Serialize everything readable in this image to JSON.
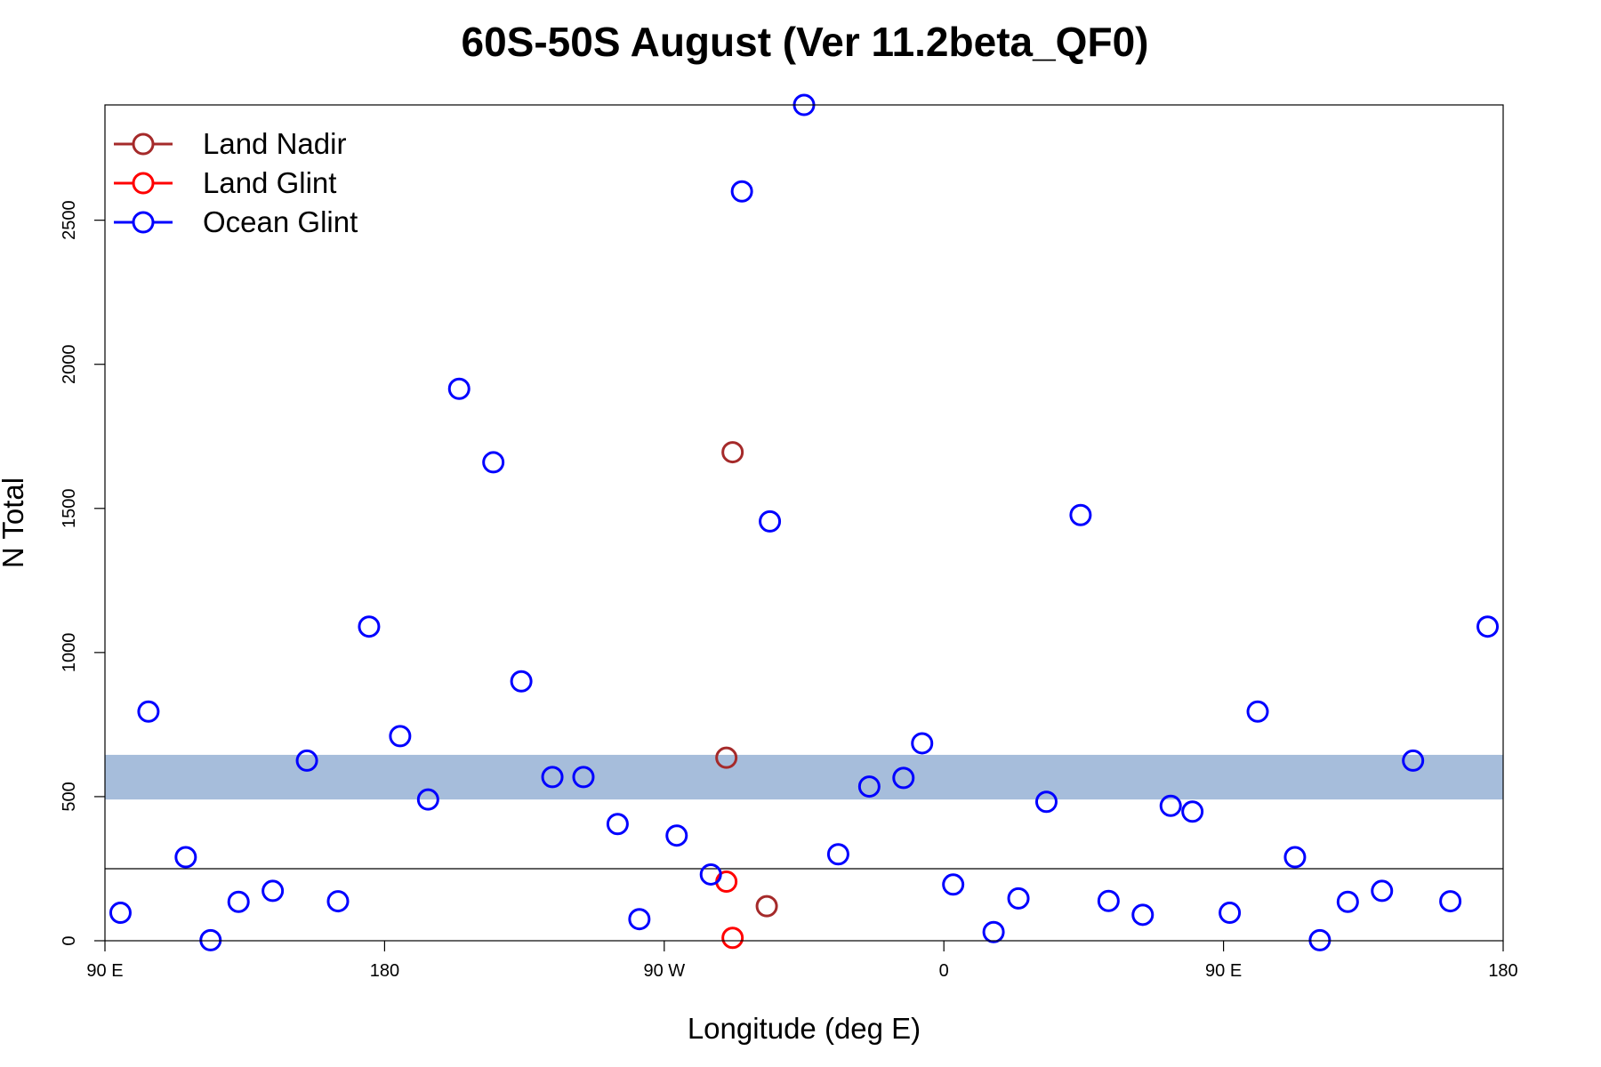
{
  "chart_data": {
    "type": "scatter",
    "title": "60S-50S August (Ver 11.2beta_QF0)",
    "xlabel": "Longitude (deg E)",
    "ylabel": "N Total",
    "xlim": [
      90,
      540
    ],
    "ylim": [
      0,
      2900
    ],
    "x_ticks": [
      {
        "value": 90,
        "label": "90 E"
      },
      {
        "value": 180,
        "label": "180"
      },
      {
        "value": 270,
        "label": "90 W"
      },
      {
        "value": 360,
        "label": "0"
      },
      {
        "value": 450,
        "label": "90 E"
      },
      {
        "value": 540,
        "label": "180"
      }
    ],
    "y_ticks": [
      0,
      500,
      1000,
      1500,
      2000,
      2500
    ],
    "reference_line": 250,
    "band": [
      490,
      645
    ],
    "band_color": "#a6bddb",
    "legend_position": "top-left",
    "series": [
      {
        "name": "Land Nadir",
        "color": "#a52a2a",
        "points": [
          [
            292,
            1695
          ],
          [
            290,
            635
          ],
          [
            303,
            120
          ]
        ]
      },
      {
        "name": "Land Glint",
        "color": "#ff0000",
        "points": [
          [
            290,
            205
          ],
          [
            292,
            10
          ]
        ]
      },
      {
        "name": "Ocean Glint",
        "color": "#0000ff",
        "points": [
          [
            95,
            97
          ],
          [
            104,
            795
          ],
          [
            116,
            290
          ],
          [
            124,
            2
          ],
          [
            133,
            135
          ],
          [
            144,
            173
          ],
          [
            155,
            625
          ],
          [
            165,
            137
          ],
          [
            175,
            1090
          ],
          [
            185,
            710
          ],
          [
            194,
            490
          ],
          [
            204,
            1915
          ],
          [
            215,
            1660
          ],
          [
            224,
            900
          ],
          [
            234,
            568
          ],
          [
            244,
            568
          ],
          [
            255,
            405
          ],
          [
            262,
            75
          ],
          [
            274,
            365
          ],
          [
            285,
            230
          ],
          [
            295,
            2600
          ],
          [
            304,
            1455
          ],
          [
            315,
            2900
          ],
          [
            326,
            300
          ],
          [
            336,
            535
          ],
          [
            347,
            565
          ],
          [
            353,
            685
          ],
          [
            363,
            195
          ],
          [
            376,
            30
          ],
          [
            384,
            147
          ],
          [
            393,
            482
          ],
          [
            404,
            1477
          ],
          [
            413,
            138
          ],
          [
            424,
            90
          ],
          [
            433,
            468
          ],
          [
            440,
            448
          ],
          [
            452,
            97
          ],
          [
            461,
            795
          ],
          [
            473,
            290
          ],
          [
            481,
            2
          ],
          [
            490,
            135
          ],
          [
            501,
            173
          ],
          [
            511,
            625
          ],
          [
            523,
            137
          ],
          [
            535,
            1090
          ]
        ]
      }
    ]
  }
}
